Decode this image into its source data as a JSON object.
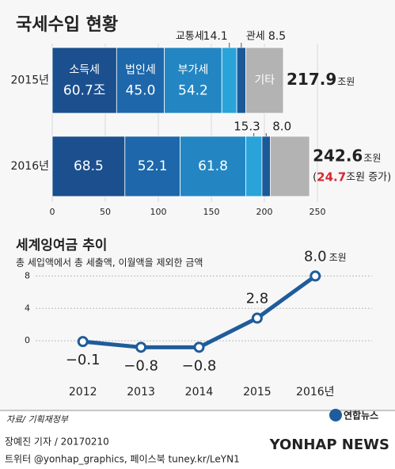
{
  "chart_data": [
    {
      "type": "stacked-bar",
      "title": "국세수입 현황",
      "categories": [
        "2015년",
        "2016년"
      ],
      "series": [
        {
          "name": "소득세",
          "color": "#1b4f8e",
          "values": [
            60.7,
            68.5
          ],
          "value_labels": [
            "60.7조",
            "68.5"
          ]
        },
        {
          "name": "법인세",
          "color": "#1d67aa",
          "values": [
            45.0,
            52.1
          ],
          "value_labels": [
            "45.0",
            "52.1"
          ]
        },
        {
          "name": "부가세",
          "color": "#2386c2",
          "values": [
            54.2,
            61.8
          ]
        },
        {
          "name": "교통세",
          "color": "#2aa3d9",
          "values": [
            14.1,
            15.3
          ]
        },
        {
          "name": "관세",
          "color": "#1b5998",
          "values": [
            8.5,
            8.0
          ],
          "value_labels": [
            "8.5",
            "8.0"
          ]
        },
        {
          "name": "기타",
          "color": "#b3b3b3",
          "values": [
            35.4,
            36.9
          ]
        }
      ],
      "totals": [
        217.9,
        242.6
      ],
      "total_unit": "조원",
      "increase": 24.7,
      "increase_text": [
        "(",
        "조원 증가)"
      ],
      "increase_color": "#d7282f",
      "xlim": [
        0,
        250
      ],
      "xticks": [
        0,
        50,
        100,
        150,
        200,
        250
      ],
      "grid": true
    },
    {
      "type": "line",
      "title": "세계잉여금 추이",
      "subtitle": "총 세입액에서 총 세출액, 이월액을 제외한 금액",
      "categories": [
        "2012",
        "2013",
        "2014",
        "2015",
        "2016년"
      ],
      "values": [
        -0.1,
        -0.8,
        -0.8,
        2.8,
        8.0
      ],
      "value_labels": [
        "−0.1",
        "−0.8",
        "−0.8",
        "2.8",
        "8.0"
      ],
      "unit": "조원",
      "color": "#1f5c9b",
      "ylim": [
        -4,
        10
      ],
      "yticks": [
        0,
        4,
        8
      ],
      "grid": true
    }
  ],
  "footer": {
    "source": "자료/ 기획재정부",
    "logo": "연합뉴스",
    "byline": "장예진 기자 / 20170210",
    "social": "트위터 @yonhap_graphics, 페이스북 tuney.kr/LeYN1",
    "watermark": "YONHAP NEWS"
  }
}
